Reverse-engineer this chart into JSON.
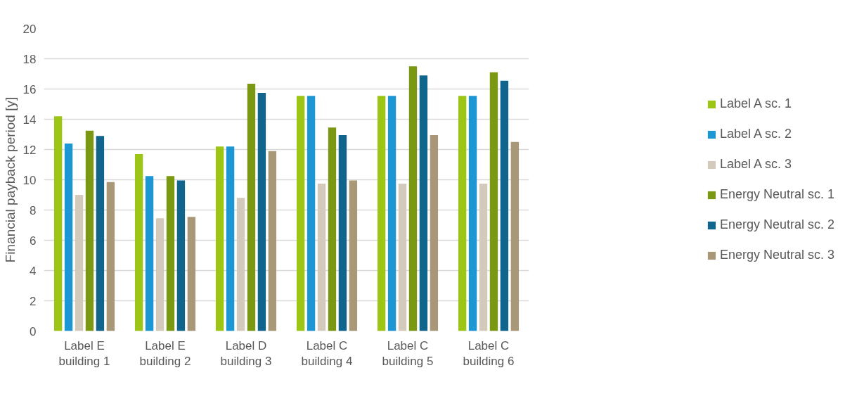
{
  "chart_data": {
    "type": "bar",
    "ylabel": "Financial payback period [y]",
    "categories": [
      "Label E\nbuilding 1",
      "Label E\nbuilding 2",
      "Label D\nbuilding 3",
      "Label C\nbuilding 4",
      "Label C\nbuilding 5",
      "Label C\nbuilding 6"
    ],
    "series": [
      {
        "name": "Label A sc. 1",
        "color": "#9dc516",
        "values": [
          14.2,
          11.7,
          12.2,
          15.55,
          15.55,
          15.55
        ]
      },
      {
        "name": "Label A sc. 2",
        "color": "#1d96d4",
        "values": [
          12.4,
          10.25,
          12.2,
          15.55,
          15.55,
          15.55
        ]
      },
      {
        "name": "Label A sc. 3",
        "color": "#d3cabb",
        "values": [
          9.0,
          7.45,
          8.8,
          9.75,
          9.75,
          9.75
        ]
      },
      {
        "name": "Energy Neutral sc. 1",
        "color": "#7a9811",
        "values": [
          13.25,
          10.25,
          16.35,
          13.45,
          17.5,
          17.1
        ]
      },
      {
        "name": "Energy Neutral sc. 2",
        "color": "#11648c",
        "values": [
          12.9,
          9.95,
          15.75,
          12.95,
          16.9,
          16.55
        ]
      },
      {
        "name": "Energy Neutral sc. 3",
        "color": "#a89878",
        "values": [
          9.85,
          7.55,
          11.9,
          9.95,
          12.95,
          12.5
        ]
      }
    ],
    "ylim": [
      0,
      20
    ],
    "yticks": [
      0,
      2,
      4,
      6,
      8,
      10,
      12,
      14,
      16,
      18,
      20
    ],
    "grid": "y",
    "legend": "right"
  }
}
